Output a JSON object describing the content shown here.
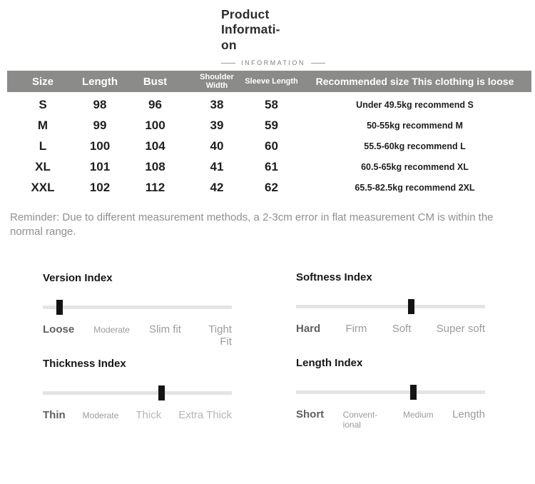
{
  "header": {
    "title_line1": "Product Informati-",
    "title_line2": "on",
    "subtitle": "INFORMATION"
  },
  "size_table": {
    "columns": [
      "Size",
      "Length",
      "Bust",
      "Shoulder Width",
      "Sleeve Length",
      "Recommended size This clothing is loose"
    ],
    "rows": [
      {
        "size": "S",
        "length": "98",
        "bust": "96",
        "shoulder": "38",
        "sleeve": "58",
        "recommend": "Under 49.5kg recommend S"
      },
      {
        "size": "M",
        "length": "99",
        "bust": "100",
        "shoulder": "39",
        "sleeve": "59",
        "recommend": "50-55kg recommend M"
      },
      {
        "size": "L",
        "length": "100",
        "bust": "104",
        "shoulder": "40",
        "sleeve": "60",
        "recommend": "55.5-60kg recommend L"
      },
      {
        "size": "XL",
        "length": "101",
        "bust": "108",
        "shoulder": "41",
        "sleeve": "61",
        "recommend": "60.5-65kg recommend XL"
      },
      {
        "size": "XXL",
        "length": "102",
        "bust": "112",
        "shoulder": "42",
        "sleeve": "62",
        "recommend": "65.5-82.5kg recommend 2XL"
      }
    ]
  },
  "reminder": "Reminder: Due to different measurement methods, a 2-3cm error in flat measurement CM is within the normal range.",
  "indexes": [
    {
      "title": "Version Index",
      "marker_percent": 9,
      "labels": [
        {
          "text": "Loose"
        },
        {
          "text": "Moderate"
        },
        {
          "text": "Slim fit"
        },
        {
          "text": "Tight Fit"
        }
      ]
    },
    {
      "title": "Softness Index",
      "marker_percent": 61,
      "labels": [
        {
          "text": "Hard"
        },
        {
          "text": "Firm"
        },
        {
          "text": "Soft"
        },
        {
          "text": "Super soft"
        }
      ]
    },
    {
      "title": "Thickness Index",
      "marker_percent": 63,
      "labels": [
        {
          "text": "Thin"
        },
        {
          "text": "Moderate"
        },
        {
          "text": "Thick"
        },
        {
          "text": "Extra Thick"
        }
      ]
    },
    {
      "title": "Length Index",
      "marker_percent": 62,
      "labels": [
        {
          "text": "Short"
        },
        {
          "text": "Convent-ional"
        },
        {
          "text": "Medium"
        },
        {
          "text": "Length"
        }
      ]
    }
  ],
  "colors": {
    "table_header_bg": "#8b8b89",
    "table_header_text": "#ffffff",
    "slider_track": "#e4e4e4",
    "slider_marker": "#141414",
    "reminder_text": "#8f8f8f"
  }
}
